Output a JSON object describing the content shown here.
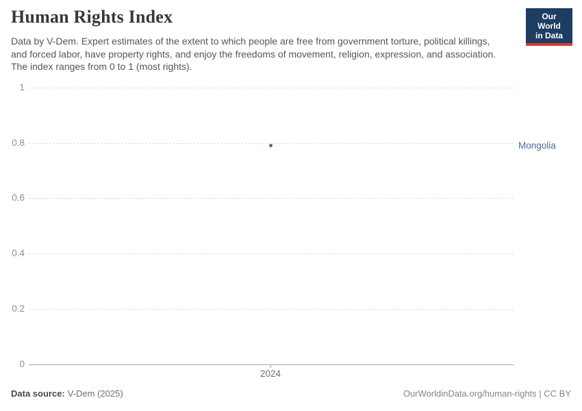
{
  "header": {
    "title": "Human Rights Index",
    "subtitle": "Data by V-Dem. Expert estimates of the extent to which people are free from government torture, political killings, and forced labor, have property rights, and enjoy the freedoms of movement, religion, expression, and association. The index ranges from 0 to 1 (most rights).",
    "logo": {
      "line1": "Our World",
      "line2": "in Data",
      "bg_color": "#1d3d63",
      "accent_color": "#dc3e34"
    }
  },
  "chart_data": {
    "type": "scatter",
    "title": "Human Rights Index",
    "x": [
      2024
    ],
    "xticks": [
      "2024"
    ],
    "yticks": [
      0,
      0.2,
      0.4,
      0.6,
      0.8,
      1
    ],
    "ylim": [
      0,
      1
    ],
    "grid": "horizontal-dashed",
    "series": [
      {
        "name": "Mongolia",
        "x": 2024,
        "value": 0.79,
        "color": "#4c6a9c"
      }
    ]
  },
  "footer": {
    "source_label": "Data source:",
    "source_value": "V-Dem (2025)",
    "attribution": "OurWorldinData.org/human-rights | CC BY"
  },
  "colors": {
    "title": "#383838",
    "subtitle": "#555555",
    "axis_label": "#8f8f8f",
    "gridline": "#dedede",
    "axis_line": "#a3a3a3",
    "accent_blue": "#4c6a9c",
    "logo_navy": "#1d3d63",
    "logo_red": "#dc3e34"
  }
}
